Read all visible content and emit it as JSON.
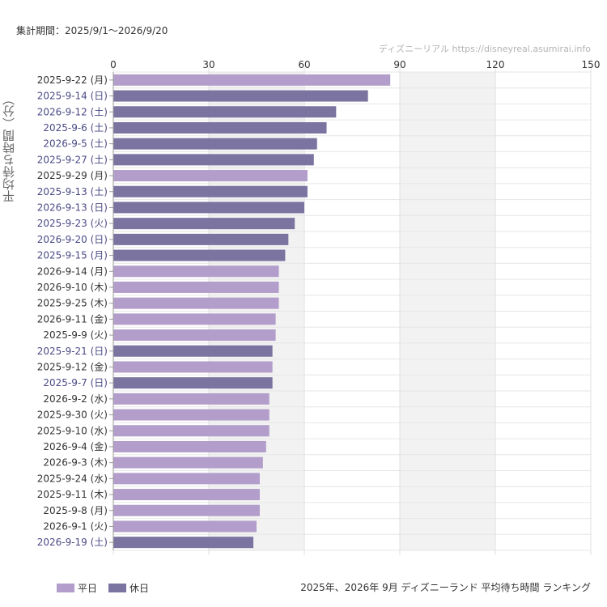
{
  "header": {
    "period": "集計期間：2025/9/1〜2026/9/20",
    "watermark": "ディズニーリアル https://disneyreal.asumirai.info"
  },
  "footer": {
    "title": "2025年、2026年 9月 ディズニーランド 平均待ち時間 ランキング"
  },
  "chart_data": {
    "type": "bar",
    "orientation": "horizontal",
    "ylabel": "平均待ち時間（分）",
    "xlim": [
      0,
      150
    ],
    "xticks": [
      0,
      30,
      60,
      90,
      120,
      150
    ],
    "grid": true,
    "legend_position": "bottom-left",
    "colors": {
      "平日": "#b39ecb",
      "休日": "#7b74a1",
      "holiday_label_text": "#4b4a86",
      "weekday_label_text": "#333333",
      "shaded_band": "#f2f2f2"
    },
    "categories": [
      "2025-9-22 (月)",
      "2025-9-14 (日)",
      "2026-9-12 (土)",
      "2025-9-6 (土)",
      "2026-9-5 (土)",
      "2025-9-27 (土)",
      "2025-9-29 (月)",
      "2025-9-13 (土)",
      "2026-9-13 (日)",
      "2025-9-23 (火)",
      "2026-9-20 (日)",
      "2025-9-15 (月)",
      "2026-9-14 (月)",
      "2026-9-10 (木)",
      "2025-9-25 (木)",
      "2026-9-11 (金)",
      "2025-9-9 (火)",
      "2025-9-21 (日)",
      "2025-9-12 (金)",
      "2025-9-7 (日)",
      "2026-9-2 (水)",
      "2025-9-30 (火)",
      "2025-9-10 (水)",
      "2026-9-4 (金)",
      "2026-9-3 (木)",
      "2025-9-24 (水)",
      "2025-9-11 (木)",
      "2025-9-8 (月)",
      "2026-9-1 (火)",
      "2026-9-19 (土)"
    ],
    "values": [
      87,
      80,
      70,
      67,
      64,
      63,
      61,
      61,
      60,
      57,
      55,
      54,
      52,
      52,
      52,
      51,
      51,
      50,
      50,
      50,
      49,
      49,
      49,
      48,
      47,
      46,
      46,
      46,
      45,
      44
    ],
    "day_type": [
      "平日",
      "休日",
      "休日",
      "休日",
      "休日",
      "休日",
      "平日",
      "休日",
      "休日",
      "休日",
      "休日",
      "休日",
      "平日",
      "平日",
      "平日",
      "平日",
      "平日",
      "休日",
      "平日",
      "休日",
      "平日",
      "平日",
      "平日",
      "平日",
      "平日",
      "平日",
      "平日",
      "平日",
      "平日",
      "休日"
    ],
    "series": [
      {
        "name": "平日"
      },
      {
        "name": "休日"
      }
    ]
  }
}
